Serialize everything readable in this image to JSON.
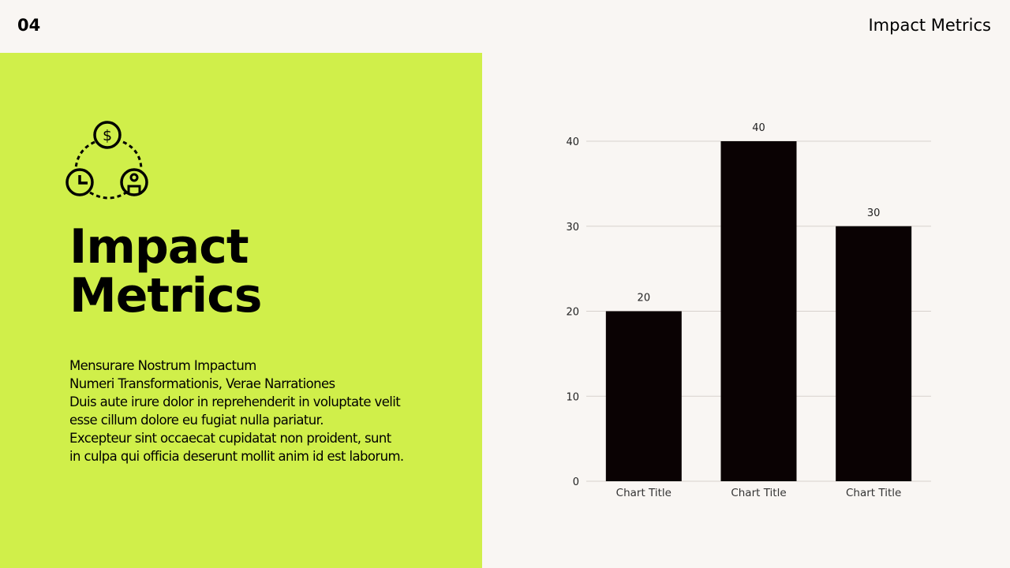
{
  "slide_number": "04",
  "header_title": "Impact Metrics",
  "panel": {
    "title_line1": "Impact",
    "title_line2": "Metrics",
    "body_lines": [
      "Mensurare Nostrum Impactum",
      "Numeri Transformationis, Verae Narrationes",
      "Duis aute irure dolor in reprehenderit in voluptate velit",
      "esse cillum dolore eu fugiat nulla pariatur.",
      "Excepteur sint occaecat cupidatat non proident, sunt",
      "in culpa qui officia deserunt mollit anim id est laborum."
    ],
    "icon": "dollar-clock-person-cycle-icon",
    "icon_symbol": "$",
    "color": "#d0ef4a"
  },
  "chart_data": {
    "type": "bar",
    "categories": [
      "Chart Title",
      "Chart Title",
      "Chart Title"
    ],
    "values": [
      20,
      40,
      30
    ],
    "data_labels": [
      "20",
      "40",
      "30"
    ],
    "yticks": [
      "0",
      "10",
      "20",
      "30",
      "40"
    ],
    "ylim": [
      0,
      40
    ],
    "grid": true,
    "bar_color": "#0a0203"
  }
}
